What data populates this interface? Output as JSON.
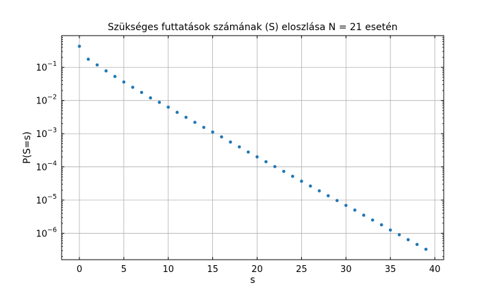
{
  "chart_data": {
    "type": "scatter",
    "title": "Szükséges futtatások számának (S) eloszlása N = 21 esetén",
    "xlabel": "s",
    "ylabel": "P(S=s)",
    "xlim": [
      -2,
      41
    ],
    "ylim": [
      1.6e-07,
      0.9
    ],
    "yscale": "log",
    "grid": true,
    "xticks": [
      0,
      5,
      10,
      15,
      20,
      25,
      30,
      35,
      40
    ],
    "yticks": [
      {
        "value": 0.1,
        "base": "10",
        "exp": "−1"
      },
      {
        "value": 0.01,
        "base": "10",
        "exp": "−2"
      },
      {
        "value": 0.001,
        "base": "10",
        "exp": "−3"
      },
      {
        "value": 0.0001,
        "base": "10",
        "exp": "−4"
      },
      {
        "value": 1e-05,
        "base": "10",
        "exp": "−5"
      },
      {
        "value": 1e-06,
        "base": "10",
        "exp": "−6"
      }
    ],
    "marker_color": "#1f77b4",
    "x": [
      0,
      1,
      2,
      3,
      4,
      5,
      6,
      7,
      8,
      9,
      10,
      11,
      12,
      13,
      14,
      15,
      16,
      17,
      18,
      19,
      20,
      21,
      22,
      23,
      24,
      25,
      26,
      27,
      28,
      29,
      30,
      31,
      32,
      33,
      34,
      35,
      36,
      37,
      38,
      39
    ],
    "y": [
      0.43,
      0.175,
      0.118,
      0.078,
      0.053,
      0.036,
      0.025,
      0.0175,
      0.012,
      0.0088,
      0.0063,
      0.0044,
      0.0031,
      0.0022,
      0.00155,
      0.00112,
      0.0008,
      0.00056,
      0.0004,
      0.00028,
      0.0002,
      0.000143,
      0.000102,
      7.3e-05,
      5.2e-05,
      3.7e-05,
      2.65e-05,
      1.9e-05,
      1.35e-05,
      9.7e-06,
      6.9e-06,
      5e-06,
      3.5e-06,
      2.5e-06,
      1.8e-06,
      1.25e-06,
      9e-07,
      6.4e-07,
      4.6e-07,
      3.3e-07
    ]
  }
}
